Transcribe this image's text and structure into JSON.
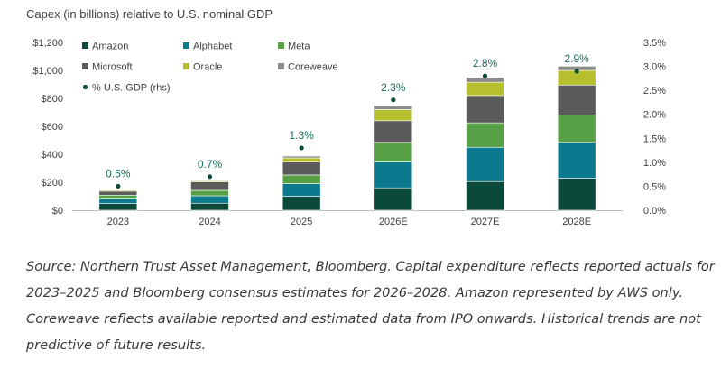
{
  "chart_data": {
    "type": "bar",
    "stacked": true,
    "title": "Capex (in billions) relative to U.S. nominal GDP",
    "categories": [
      "2023",
      "2024",
      "2025",
      "2026E",
      "2027E",
      "2028E"
    ],
    "series": [
      {
        "name": "Amazon",
        "color": "#0b4a3a",
        "values": [
          48,
          50,
          100,
          160,
          205,
          230
        ]
      },
      {
        "name": "Alphabet",
        "color": "#0b7a8f",
        "values": [
          32,
          53,
          90,
          185,
          245,
          255
        ]
      },
      {
        "name": "Meta",
        "color": "#58a046",
        "values": [
          28,
          39,
          62,
          140,
          175,
          195
        ]
      },
      {
        "name": "Microsoft",
        "color": "#5a5a5a",
        "values": [
          28,
          60,
          92,
          155,
          195,
          215
        ]
      },
      {
        "name": "Oracle",
        "color": "#b8bf2e",
        "values": [
          7,
          7,
          30,
          80,
          95,
          105
        ]
      },
      {
        "name": "Coreweave",
        "color": "#8c8c8c",
        "values": [
          0,
          5,
          13,
          30,
          35,
          30
        ]
      }
    ],
    "gdp_series": {
      "name": "% U.S. GDP (rhs)",
      "color": "#0b4a3a",
      "values": [
        0.5,
        0.7,
        1.3,
        2.3,
        2.8,
        2.9
      ],
      "labels": [
        "0.5%",
        "0.7%",
        "1.3%",
        "2.3%",
        "2.8%",
        "2.9%"
      ],
      "label_color": "#1a6e5a"
    },
    "ylim": [
      0,
      1200
    ],
    "y_ticks": [
      0,
      200,
      400,
      600,
      800,
      1000,
      1200
    ],
    "y_tick_labels": [
      "$0",
      "$200",
      "$400",
      "$600",
      "$800",
      "$1,000",
      "$1,200"
    ],
    "y2lim": [
      0,
      3.5
    ],
    "y2_ticks": [
      0,
      0.5,
      1,
      1.5,
      2,
      2.5,
      3,
      3.5
    ],
    "y2_tick_labels": [
      "0.0%",
      "0.5%",
      "1.0%",
      "1.5%",
      "2.0%",
      "2.5%",
      "3.0%",
      "3.5%"
    ],
    "legend_position": "top-left",
    "grid": false
  },
  "caption_lines": [
    "Source: Northern Trust Asset Management, Bloomberg. Capital expenditure reflects reported actuals for",
    "2023–2025 and Bloomberg consensus estimates for 2026–2028. Amazon represented by AWS only.",
    "Coreweave reflects available reported and estimated data from IPO onwards. Historical trends are not",
    "predictive of future results."
  ]
}
